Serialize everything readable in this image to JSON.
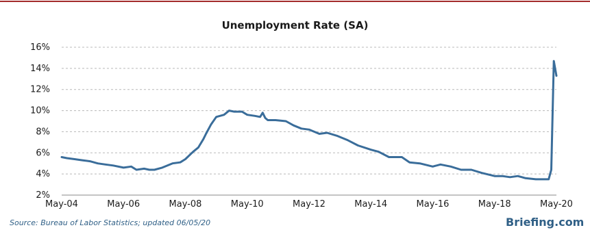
{
  "colors": {
    "frame_rule": "#a32b2b",
    "line": "#3a6d9a",
    "grid": "#b8b8b8",
    "source_text": "#2f5f86",
    "brand": "#2f5f86"
  },
  "footer": {
    "source": "Source: Bureau of Labor Statistics; updated 06/05/20",
    "brand": "Briefing.com"
  },
  "chart_data": {
    "type": "line",
    "title": "Unemployment Rate (SA)",
    "xlabel": "",
    "ylabel": "",
    "ylim": [
      2,
      16
    ],
    "xlim": [
      "2004-05",
      "2020-05"
    ],
    "grid": true,
    "legend": "none",
    "yticks": [
      {
        "value": 2,
        "label": "2%"
      },
      {
        "value": 4,
        "label": "4%"
      },
      {
        "value": 6,
        "label": "6%"
      },
      {
        "value": 8,
        "label": "8%"
      },
      {
        "value": 10,
        "label": "10%"
      },
      {
        "value": 12,
        "label": "12%"
      },
      {
        "value": 14,
        "label": "14%"
      },
      {
        "value": 16,
        "label": "16%"
      }
    ],
    "xticks": [
      {
        "value": "2004-05",
        "label": "May-04"
      },
      {
        "value": "2006-05",
        "label": "May-06"
      },
      {
        "value": "2008-05",
        "label": "May-08"
      },
      {
        "value": "2010-05",
        "label": "May-10"
      },
      {
        "value": "2012-05",
        "label": "May-12"
      },
      {
        "value": "2014-05",
        "label": "May-14"
      },
      {
        "value": "2016-05",
        "label": "May-16"
      },
      {
        "value": "2018-05",
        "label": "May-18"
      },
      {
        "value": "2020-05",
        "label": "May-20"
      }
    ],
    "series": [
      {
        "points": [
          [
            "2004-05",
            5.6
          ],
          [
            "2004-07",
            5.5
          ],
          [
            "2004-10",
            5.4
          ],
          [
            "2005-01",
            5.3
          ],
          [
            "2005-04",
            5.2
          ],
          [
            "2005-07",
            5.0
          ],
          [
            "2005-10",
            4.9
          ],
          [
            "2006-01",
            4.8
          ],
          [
            "2006-05",
            4.6
          ],
          [
            "2006-08",
            4.7
          ],
          [
            "2006-10",
            4.4
          ],
          [
            "2007-01",
            4.5
          ],
          [
            "2007-03",
            4.4
          ],
          [
            "2007-05",
            4.4
          ],
          [
            "2007-08",
            4.6
          ],
          [
            "2007-12",
            5.0
          ],
          [
            "2008-03",
            5.1
          ],
          [
            "2008-05",
            5.4
          ],
          [
            "2008-08",
            6.1
          ],
          [
            "2008-10",
            6.5
          ],
          [
            "2008-12",
            7.3
          ],
          [
            "2009-01",
            7.8
          ],
          [
            "2009-03",
            8.7
          ],
          [
            "2009-05",
            9.4
          ],
          [
            "2009-08",
            9.6
          ],
          [
            "2009-10",
            10.0
          ],
          [
            "2009-12",
            9.9
          ],
          [
            "2010-03",
            9.9
          ],
          [
            "2010-05",
            9.6
          ],
          [
            "2010-08",
            9.5
          ],
          [
            "2010-10",
            9.4
          ],
          [
            "2010-11",
            9.8
          ],
          [
            "2010-12",
            9.3
          ],
          [
            "2011-01",
            9.1
          ],
          [
            "2011-04",
            9.1
          ],
          [
            "2011-08",
            9.0
          ],
          [
            "2011-11",
            8.6
          ],
          [
            "2012-02",
            8.3
          ],
          [
            "2012-05",
            8.2
          ],
          [
            "2012-09",
            7.8
          ],
          [
            "2012-12",
            7.9
          ],
          [
            "2013-04",
            7.6
          ],
          [
            "2013-08",
            7.2
          ],
          [
            "2013-12",
            6.7
          ],
          [
            "2014-05",
            6.3
          ],
          [
            "2014-08",
            6.1
          ],
          [
            "2014-12",
            5.6
          ],
          [
            "2015-05",
            5.6
          ],
          [
            "2015-08",
            5.1
          ],
          [
            "2015-12",
            5.0
          ],
          [
            "2016-05",
            4.7
          ],
          [
            "2016-08",
            4.9
          ],
          [
            "2016-12",
            4.7
          ],
          [
            "2017-04",
            4.4
          ],
          [
            "2017-08",
            4.4
          ],
          [
            "2017-12",
            4.1
          ],
          [
            "2018-05",
            3.8
          ],
          [
            "2018-08",
            3.8
          ],
          [
            "2018-11",
            3.7
          ],
          [
            "2019-02",
            3.8
          ],
          [
            "2019-05",
            3.6
          ],
          [
            "2019-09",
            3.5
          ],
          [
            "2019-12",
            3.5
          ],
          [
            "2020-02",
            3.5
          ],
          [
            "2020-03",
            4.4
          ],
          [
            "2020-04",
            14.7
          ],
          [
            "2020-05",
            13.3
          ]
        ]
      }
    ]
  }
}
